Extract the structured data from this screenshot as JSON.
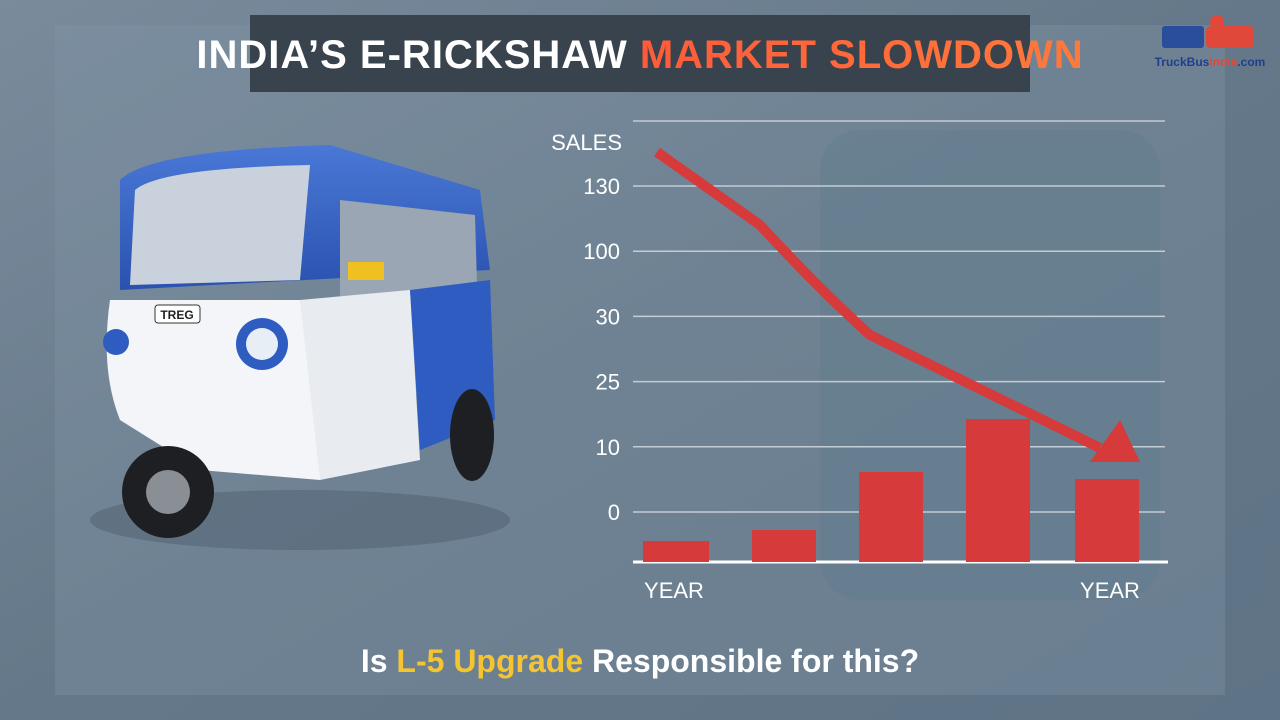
{
  "header": {
    "title_main": "INDIA’S E-RICKSHAW",
    "title_highlight": "MARKET SLOWDOWN"
  },
  "logo": {
    "brand": "TruckBus",
    "accent": "India",
    "suffix": ".com"
  },
  "vehicle": {
    "badge": "TREG"
  },
  "chart": {
    "y_label": "SALES",
    "y_tick_labels": [
      "130",
      "100",
      "30",
      "25",
      "10",
      "0"
    ],
    "x_labels": [
      "YEAR",
      "YEAR"
    ]
  },
  "footer": {
    "prefix": "Is",
    "highlight": "L-5 Upgrade",
    "suffix": "Responsible for this?"
  }
}
